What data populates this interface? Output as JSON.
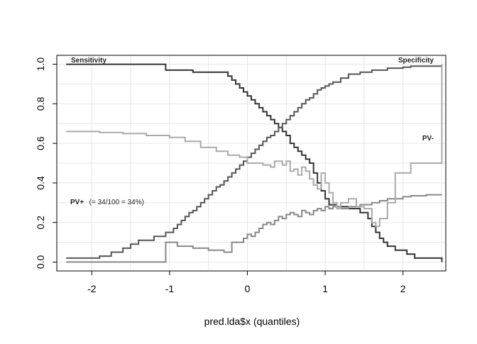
{
  "chart_data": {
    "type": "line",
    "title": "",
    "xlabel": "pred.lda$x (quantiles)",
    "ylabel": "",
    "xlim": [
      -2.45,
      2.55
    ],
    "ylim": [
      -0.045,
      1.045
    ],
    "x_ticks": [
      "-2",
      "-1",
      "0",
      "1",
      "2"
    ],
    "x_tick_values": [
      -2,
      -1,
      0,
      1,
      2
    ],
    "y_ticks": [
      "0.0",
      "0.2",
      "0.4",
      "0.6",
      "0.8",
      "1.0"
    ],
    "y_tick_values": [
      0.0,
      0.2,
      0.4,
      0.6,
      0.8,
      1.0
    ],
    "grid": true,
    "annotations": {
      "sensitivity": "Sensitivity",
      "specificity": "Specificity",
      "pv_minus": "PV-",
      "pv_plus_bold": "PV+",
      "pv_plus_rest": "(= 34/100 =  34%)"
    },
    "series": [
      {
        "color": "#333333",
        "x": [
          -2.33,
          -1.05,
          -0.7,
          -0.25,
          -0.2,
          -0.15,
          -0.1,
          -0.05,
          0.0,
          0.05,
          0.1,
          0.15,
          0.2,
          0.25,
          0.3,
          0.35,
          0.4,
          0.45,
          0.5,
          0.55,
          0.6,
          0.65,
          0.7,
          0.75,
          0.8,
          0.85,
          0.9,
          0.95,
          1.0,
          1.05,
          1.15,
          1.3,
          1.45,
          1.55,
          1.6,
          1.65,
          1.7,
          1.75,
          1.8,
          1.9,
          2.05,
          2.15,
          2.5
        ],
        "y": [
          1.0,
          0.97,
          0.96,
          0.94,
          0.92,
          0.9,
          0.88,
          0.86,
          0.84,
          0.82,
          0.8,
          0.78,
          0.76,
          0.74,
          0.72,
          0.7,
          0.68,
          0.66,
          0.64,
          0.6,
          0.58,
          0.56,
          0.54,
          0.52,
          0.5,
          0.45,
          0.4,
          0.36,
          0.32,
          0.29,
          0.28,
          0.27,
          0.25,
          0.22,
          0.18,
          0.15,
          0.12,
          0.1,
          0.08,
          0.06,
          0.04,
          0.02,
          0.0
        ]
      },
      {
        "color": "#555555",
        "x": [
          -2.33,
          -1.9,
          -1.75,
          -1.6,
          -1.5,
          -1.4,
          -1.2,
          -1.05,
          -0.95,
          -0.9,
          -0.85,
          -0.8,
          -0.75,
          -0.7,
          -0.65,
          -0.6,
          -0.55,
          -0.5,
          -0.45,
          -0.4,
          -0.35,
          -0.3,
          -0.25,
          -0.2,
          -0.15,
          -0.1,
          -0.05,
          0.0,
          0.05,
          0.1,
          0.15,
          0.2,
          0.25,
          0.3,
          0.35,
          0.4,
          0.45,
          0.5,
          0.55,
          0.6,
          0.65,
          0.7,
          0.75,
          0.8,
          0.85,
          0.9,
          0.95,
          1.0,
          1.05,
          1.1,
          1.2,
          1.3,
          1.45,
          1.6,
          1.8,
          2.0,
          2.1,
          2.5
        ],
        "y": [
          0.02,
          0.03,
          0.05,
          0.07,
          0.09,
          0.11,
          0.13,
          0.15,
          0.17,
          0.19,
          0.21,
          0.23,
          0.25,
          0.26,
          0.28,
          0.3,
          0.32,
          0.34,
          0.36,
          0.38,
          0.39,
          0.41,
          0.43,
          0.45,
          0.47,
          0.49,
          0.51,
          0.53,
          0.55,
          0.57,
          0.59,
          0.61,
          0.63,
          0.64,
          0.66,
          0.68,
          0.7,
          0.72,
          0.74,
          0.76,
          0.78,
          0.8,
          0.82,
          0.83,
          0.85,
          0.87,
          0.88,
          0.89,
          0.9,
          0.91,
          0.93,
          0.95,
          0.96,
          0.97,
          0.98,
          0.985,
          0.99,
          0.99
        ]
      },
      {
        "color": "#888888",
        "x": [
          -2.33,
          -1.05,
          -0.9,
          -0.7,
          -0.5,
          -0.3,
          -0.2,
          -0.05,
          0.0,
          0.05,
          0.1,
          0.15,
          0.2,
          0.25,
          0.3,
          0.35,
          0.4,
          0.45,
          0.5,
          0.55,
          0.6,
          0.65,
          0.7,
          0.75,
          0.8,
          0.85,
          0.9,
          0.95,
          1.0,
          1.05,
          1.1,
          1.2,
          1.3,
          1.45,
          1.6,
          1.7,
          1.8,
          1.9,
          2.0,
          2.1,
          2.3,
          2.5
        ],
        "y": [
          0.0,
          0.1,
          0.08,
          0.07,
          0.06,
          0.05,
          0.1,
          0.12,
          0.14,
          0.13,
          0.15,
          0.17,
          0.19,
          0.2,
          0.19,
          0.21,
          0.23,
          0.22,
          0.24,
          0.25,
          0.24,
          0.23,
          0.26,
          0.25,
          0.24,
          0.26,
          0.27,
          0.26,
          0.28,
          0.27,
          0.28,
          0.27,
          0.28,
          0.29,
          0.3,
          0.31,
          0.32,
          0.32,
          0.33,
          0.335,
          0.34,
          0.34
        ]
      },
      {
        "color": "#aaaaaa",
        "x": [
          -2.33,
          -1.9,
          -1.6,
          -1.3,
          -1.0,
          -0.8,
          -0.6,
          -0.4,
          -0.25,
          -0.1,
          0.0,
          0.1,
          0.2,
          0.3,
          0.35,
          0.45,
          0.5,
          0.55,
          0.6,
          0.65,
          0.7,
          0.75,
          0.8,
          0.85,
          0.9,
          0.95,
          1.0,
          1.05,
          1.1,
          1.15,
          1.2,
          1.3,
          1.4,
          1.5,
          1.6,
          1.65,
          1.7,
          1.8,
          1.9,
          2.1,
          2.5
        ],
        "y": [
          0.66,
          0.655,
          0.65,
          0.64,
          0.63,
          0.61,
          0.58,
          0.56,
          0.54,
          0.53,
          0.5,
          0.5,
          0.49,
          0.48,
          0.51,
          0.49,
          0.51,
          0.46,
          0.47,
          0.44,
          0.48,
          0.46,
          0.42,
          0.39,
          0.37,
          0.45,
          0.4,
          0.35,
          0.3,
          0.27,
          0.3,
          0.32,
          0.28,
          0.27,
          0.2,
          0.18,
          0.22,
          0.3,
          0.45,
          0.5,
          1.0
        ]
      }
    ]
  }
}
